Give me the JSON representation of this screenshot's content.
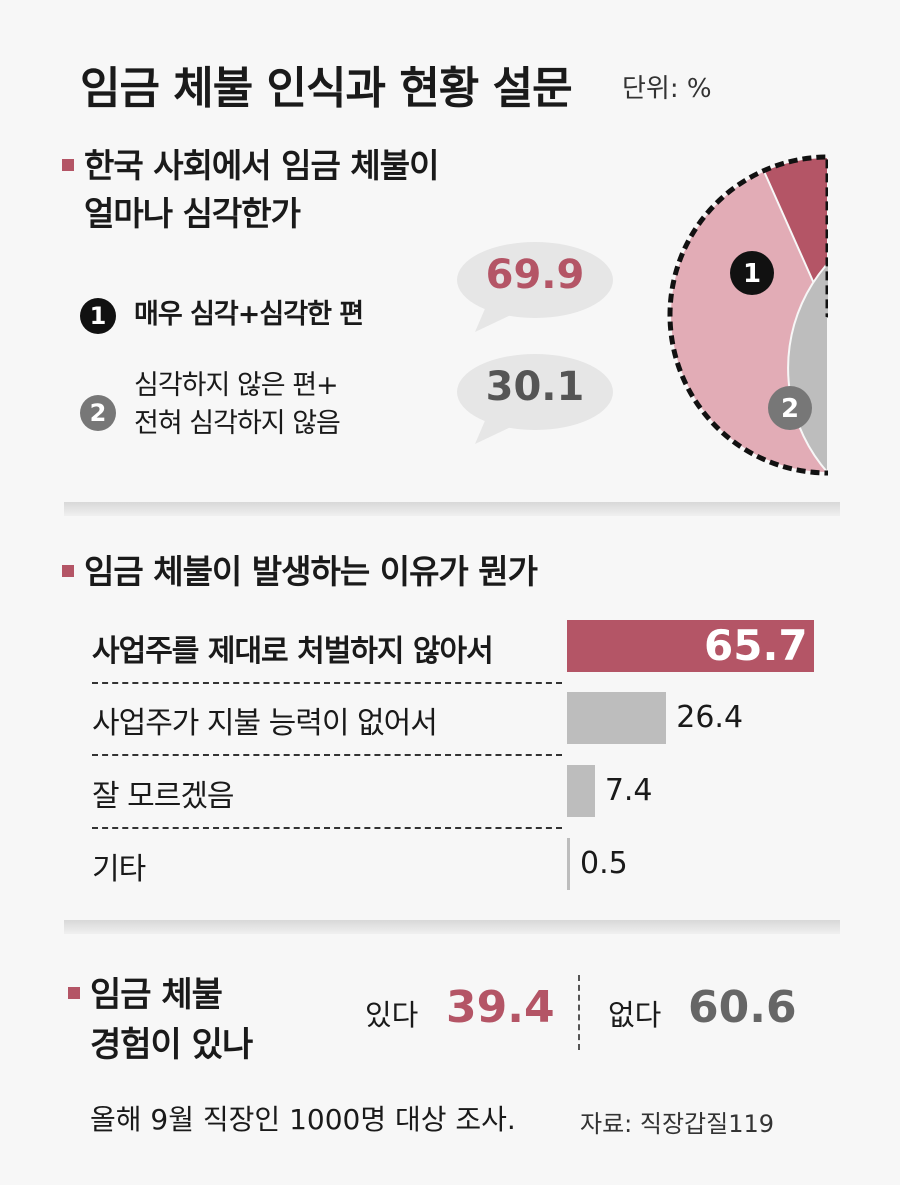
{
  "title": "임금 체불 인식과 현황 설문",
  "unit": "단위: %",
  "q1": {
    "heading_line1": "한국 사회에서 임금 체불이",
    "heading_line2": "얼마나 심각한가",
    "items": [
      {
        "num": "1",
        "label_line1": "매우 심각+심각한 편",
        "label_line2": "",
        "value": "69.9"
      },
      {
        "num": "2",
        "label_line1": "심각하지 않은 편+",
        "label_line2": "전혀 심각하지 않음",
        "value": "30.1"
      }
    ],
    "pie_label_1": "1",
    "pie_label_2": "2"
  },
  "q2": {
    "heading": "임금 체불이 발생하는 이유가 뭔가",
    "bars": [
      {
        "label": "사업주를 제대로 처벌하지 않아서",
        "value": "65.7"
      },
      {
        "label": "사업주가 지불 능력이 없어서",
        "value": "26.4"
      },
      {
        "label": "잘 모르겠음",
        "value": "7.4"
      },
      {
        "label": "기타",
        "value": "0.5"
      }
    ]
  },
  "q3": {
    "heading_line1": "임금 체불",
    "heading_line2": "경험이 있나",
    "yes_label": "있다",
    "yes_value": "39.4",
    "no_label": "없다",
    "no_value": "60.6"
  },
  "footnote": "올해 9월 직장인 1000명 대상 조사.",
  "source": "자료: 직장갑질119",
  "colors": {
    "accent": "#b45566",
    "accent_light": "#e2acb6",
    "gray_dark": "#8a8a8a",
    "gray_mid": "#a8a8a8",
    "gray_light": "#bdbdbd",
    "gray_num": "#666666"
  },
  "chart_data": [
    {
      "type": "pie",
      "title": "한국 사회에서 임금 체불이 얼마나 심각한가",
      "unit": "%",
      "slices": [
        {
          "label": "매우 심각+심각한 편",
          "value": 69.9
        },
        {
          "label": "심각하지 않은 편+전혀 심각하지 않음",
          "value": 30.1
        }
      ]
    },
    {
      "type": "bar",
      "orientation": "horizontal",
      "title": "임금 체불이 발생하는 이유가 뭔가",
      "unit": "%",
      "categories": [
        "사업주를 제대로 처벌하지 않아서",
        "사업주가 지불 능력이 없어서",
        "잘 모르겠음",
        "기타"
      ],
      "values": [
        65.7,
        26.4,
        7.4,
        0.5
      ]
    },
    {
      "type": "table",
      "title": "임금 체불 경험이 있나",
      "unit": "%",
      "categories": [
        "있다",
        "없다"
      ],
      "values": [
        39.4,
        60.6
      ]
    }
  ]
}
